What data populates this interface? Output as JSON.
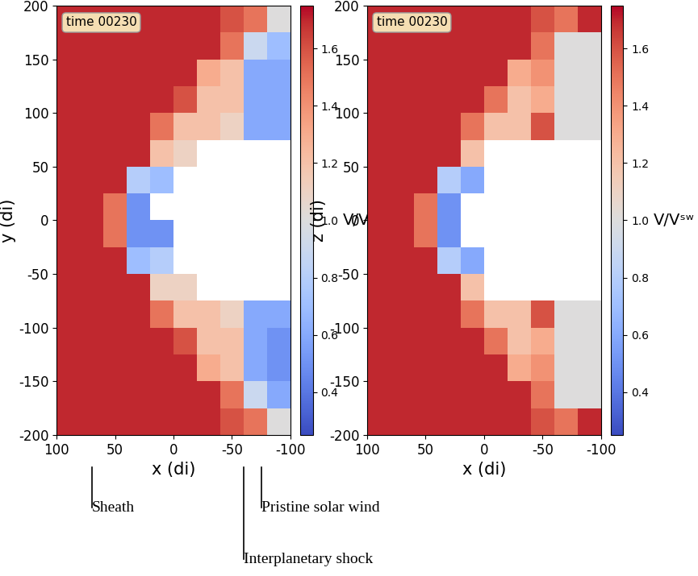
{
  "chart_data": [
    {
      "type": "heatmap",
      "xlabel": "x (di)",
      "ylabel": "y (di)",
      "annotation": "time 00230",
      "xlim": [
        100,
        -100
      ],
      "ylim": [
        -200,
        200
      ],
      "xticks": [
        100,
        50,
        0,
        -50,
        -100
      ],
      "yticks": [
        -200,
        -150,
        -100,
        -50,
        0,
        50,
        100,
        150,
        200
      ],
      "x_edges": [
        100,
        80,
        60,
        40,
        20,
        0,
        -20,
        -40,
        -60,
        -80,
        -100
      ],
      "y_edges": [
        200,
        175,
        150,
        125,
        100,
        75,
        50,
        25,
        0,
        -25,
        -50,
        -75,
        -100,
        -125,
        -150,
        -175,
        -200
      ],
      "cells": [
        [
          1.7,
          1.7,
          1.7,
          1.7,
          1.7,
          1.7,
          1.7,
          1.6,
          1.5,
          1.0
        ],
        [
          1.7,
          1.7,
          1.7,
          1.7,
          1.7,
          1.7,
          1.7,
          1.5,
          0.9,
          0.7
        ],
        [
          1.7,
          1.7,
          1.7,
          1.7,
          1.7,
          1.7,
          1.3,
          1.2,
          0.6,
          0.6
        ],
        [
          1.7,
          1.7,
          1.7,
          1.7,
          1.7,
          1.6,
          1.2,
          1.2,
          0.6,
          0.6
        ],
        [
          1.7,
          1.7,
          1.7,
          1.7,
          1.5,
          1.2,
          1.2,
          1.1,
          0.6,
          0.6
        ],
        [
          1.7,
          1.7,
          1.7,
          1.7,
          1.2,
          1.1,
          null,
          null,
          null,
          null
        ],
        [
          1.7,
          1.7,
          1.7,
          0.8,
          0.7,
          null,
          null,
          null,
          null,
          null
        ],
        [
          1.7,
          1.7,
          1.5,
          0.5,
          null,
          null,
          null,
          null,
          null,
          null
        ],
        [
          1.7,
          1.7,
          1.5,
          0.5,
          0.5,
          null,
          null,
          null,
          null,
          null
        ],
        [
          1.7,
          1.7,
          1.7,
          0.7,
          0.8,
          null,
          null,
          null,
          null,
          null
        ],
        [
          1.7,
          1.7,
          1.7,
          1.7,
          1.1,
          1.1,
          null,
          null,
          null,
          null
        ],
        [
          1.7,
          1.7,
          1.7,
          1.7,
          1.5,
          1.2,
          1.2,
          1.1,
          0.6,
          0.6
        ],
        [
          1.7,
          1.7,
          1.7,
          1.7,
          1.7,
          1.6,
          1.2,
          1.2,
          0.6,
          0.5
        ],
        [
          1.7,
          1.7,
          1.7,
          1.7,
          1.7,
          1.7,
          1.3,
          1.2,
          0.6,
          0.5
        ],
        [
          1.7,
          1.7,
          1.7,
          1.7,
          1.7,
          1.7,
          1.7,
          1.5,
          0.9,
          0.6
        ],
        [
          1.7,
          1.7,
          1.7,
          1.7,
          1.7,
          1.7,
          1.7,
          1.6,
          1.5,
          1.0
        ]
      ],
      "color": "coolwarm",
      "clim": [
        0.25,
        1.75
      ],
      "cbar_ticks": [
        0.4,
        0.6,
        0.8,
        1.0,
        1.2,
        1.4,
        1.6
      ],
      "cbar_label": "V/Vˢʷ",
      "callouts": [
        {
          "text": "Sheath",
          "x": 70
        },
        {
          "text": "Interplanetary shock",
          "x": -60
        },
        {
          "text": "Pristine solar wind",
          "x": -75
        }
      ]
    },
    {
      "type": "heatmap",
      "xlabel": "x (di)",
      "ylabel": "z (di)",
      "annotation": "time 00230",
      "xlim": [
        100,
        -100
      ],
      "ylim": [
        -200,
        200
      ],
      "xticks": [
        100,
        50,
        0,
        -50,
        -100
      ],
      "yticks": [
        -200,
        -150,
        -100,
        -50,
        0,
        50,
        100,
        150,
        200
      ],
      "x_edges": [
        100,
        80,
        60,
        40,
        20,
        0,
        -20,
        -40,
        -60,
        -80,
        -100
      ],
      "y_edges": [
        200,
        175,
        150,
        125,
        100,
        75,
        50,
        25,
        0,
        -25,
        -50,
        -75,
        -100,
        -125,
        -150,
        -175,
        -200
      ],
      "cells": [
        [
          1.7,
          1.7,
          1.7,
          1.7,
          1.7,
          1.7,
          1.7,
          1.6,
          1.5,
          1.7
        ],
        [
          1.7,
          1.7,
          1.7,
          1.7,
          1.7,
          1.7,
          1.7,
          1.5,
          1.0,
          1.0
        ],
        [
          1.7,
          1.7,
          1.7,
          1.7,
          1.7,
          1.7,
          1.3,
          1.4,
          1.0,
          1.0
        ],
        [
          1.7,
          1.7,
          1.7,
          1.7,
          1.7,
          1.5,
          1.2,
          1.3,
          1.0,
          1.0
        ],
        [
          1.7,
          1.7,
          1.7,
          1.7,
          1.5,
          1.2,
          1.2,
          1.6,
          1.0,
          1.0
        ],
        [
          1.7,
          1.7,
          1.7,
          1.7,
          1.2,
          null,
          null,
          null,
          null,
          null
        ],
        [
          1.7,
          1.7,
          1.7,
          0.8,
          0.6,
          null,
          null,
          null,
          null,
          null
        ],
        [
          1.7,
          1.7,
          1.5,
          0.5,
          null,
          null,
          null,
          null,
          null,
          null
        ],
        [
          1.7,
          1.7,
          1.5,
          0.5,
          null,
          null,
          null,
          null,
          null,
          null
        ],
        [
          1.7,
          1.7,
          1.7,
          0.8,
          0.6,
          null,
          null,
          null,
          null,
          null
        ],
        [
          1.7,
          1.7,
          1.7,
          1.7,
          1.2,
          null,
          null,
          null,
          null,
          null
        ],
        [
          1.7,
          1.7,
          1.7,
          1.7,
          1.5,
          1.2,
          1.2,
          1.6,
          1.0,
          1.0
        ],
        [
          1.7,
          1.7,
          1.7,
          1.7,
          1.7,
          1.5,
          1.2,
          1.3,
          1.0,
          1.0
        ],
        [
          1.7,
          1.7,
          1.7,
          1.7,
          1.7,
          1.7,
          1.3,
          1.4,
          1.0,
          1.0
        ],
        [
          1.7,
          1.7,
          1.7,
          1.7,
          1.7,
          1.7,
          1.7,
          1.5,
          1.0,
          1.0
        ],
        [
          1.7,
          1.7,
          1.7,
          1.7,
          1.7,
          1.7,
          1.7,
          1.6,
          1.5,
          1.7
        ]
      ],
      "color": "coolwarm",
      "clim": [
        0.25,
        1.75
      ],
      "cbar_ticks": [
        0.4,
        0.6,
        0.8,
        1.0,
        1.2,
        1.4,
        1.6
      ],
      "cbar_label": "V/Vˢʷ"
    }
  ]
}
